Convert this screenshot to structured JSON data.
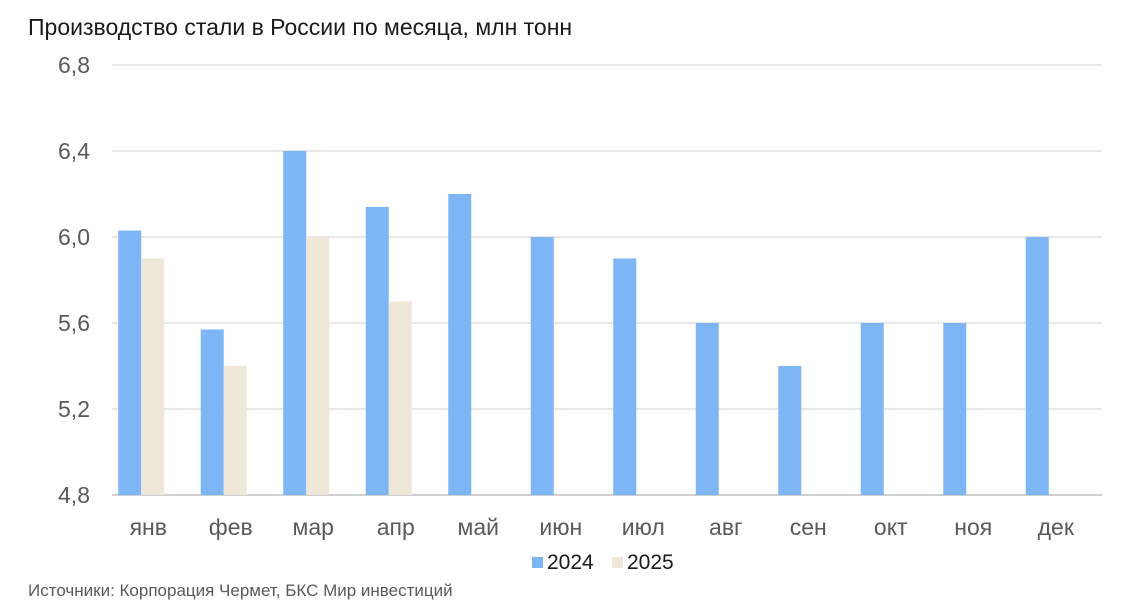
{
  "chart_data": {
    "type": "bar",
    "title": "Производство стали в России по месяца, млн тонн",
    "source": "Источники: Корпорация Чермет, БКС Мир инвестиций",
    "categories": [
      "янв",
      "фев",
      "мар",
      "апр",
      "май",
      "июн",
      "июл",
      "авг",
      "сен",
      "окт",
      "ноя",
      "дек"
    ],
    "series": [
      {
        "name": "2024",
        "color": "#7EB6F5",
        "values": [
          6.03,
          5.57,
          6.4,
          6.14,
          6.2,
          6.0,
          5.9,
          5.6,
          5.4,
          5.6,
          5.6,
          6.0
        ]
      },
      {
        "name": "2025",
        "color": "#EFE8D8",
        "values": [
          5.9,
          5.4,
          6.0,
          5.7,
          null,
          null,
          null,
          null,
          null,
          null,
          null,
          null
        ]
      }
    ],
    "ylim": [
      4.8,
      6.8
    ],
    "yticks": [
      "4,8",
      "5,2",
      "5,6",
      "6,0",
      "6,4",
      "6,8"
    ],
    "grid": true,
    "legend_position": "bottom"
  }
}
